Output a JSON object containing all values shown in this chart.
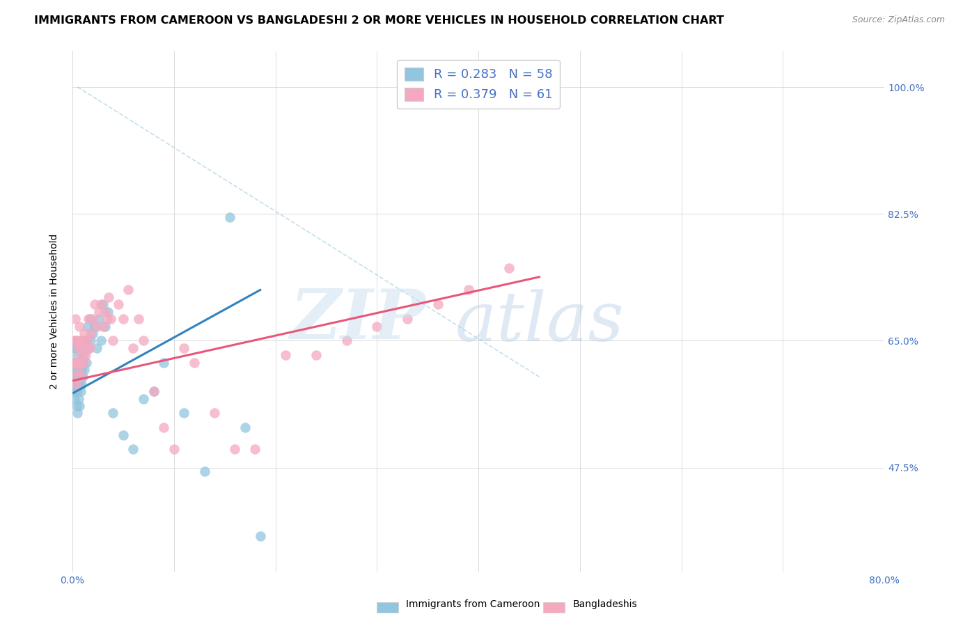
{
  "title": "IMMIGRANTS FROM CAMEROON VS BANGLADESHI 2 OR MORE VEHICLES IN HOUSEHOLD CORRELATION CHART",
  "source": "Source: ZipAtlas.com",
  "ylabel": "2 or more Vehicles in Household",
  "xlim": [
    0.0,
    0.8
  ],
  "ylim": [
    0.33,
    1.05
  ],
  "ytick_labels": [
    "47.5%",
    "65.0%",
    "82.5%",
    "100.0%"
  ],
  "ytick_vals": [
    0.475,
    0.65,
    0.825,
    1.0
  ],
  "xtick_vals": [
    0.0,
    0.1,
    0.2,
    0.3,
    0.4,
    0.5,
    0.6,
    0.7,
    0.8
  ],
  "legend_label1": "Immigrants from Cameroon",
  "legend_label2": "Bangladeshis",
  "R1": "0.283",
  "N1": "58",
  "R2": "0.379",
  "N2": "61",
  "color_blue": "#92c5de",
  "color_pink": "#f4a9bf",
  "color_blue_line": "#3182bd",
  "color_pink_line": "#e8567a",
  "color_dash": "#92c5de",
  "title_fontsize": 11.5,
  "label_fontsize": 10,
  "tick_fontsize": 10,
  "blue_scatter_x": [
    0.001,
    0.001,
    0.001,
    0.002,
    0.002,
    0.002,
    0.002,
    0.003,
    0.003,
    0.003,
    0.003,
    0.004,
    0.004,
    0.004,
    0.004,
    0.005,
    0.005,
    0.005,
    0.005,
    0.006,
    0.006,
    0.006,
    0.007,
    0.007,
    0.007,
    0.008,
    0.008,
    0.009,
    0.009,
    0.01,
    0.01,
    0.011,
    0.012,
    0.013,
    0.014,
    0.015,
    0.016,
    0.017,
    0.018,
    0.02,
    0.022,
    0.024,
    0.026,
    0.028,
    0.03,
    0.032,
    0.035,
    0.04,
    0.05,
    0.06,
    0.07,
    0.08,
    0.09,
    0.11,
    0.13,
    0.155,
    0.17,
    0.185
  ],
  "blue_scatter_y": [
    0.62,
    0.6,
    0.58,
    0.64,
    0.61,
    0.59,
    0.57,
    0.65,
    0.62,
    0.6,
    0.58,
    0.64,
    0.61,
    0.59,
    0.56,
    0.63,
    0.6,
    0.58,
    0.55,
    0.62,
    0.6,
    0.57,
    0.61,
    0.59,
    0.56,
    0.6,
    0.58,
    0.61,
    0.59,
    0.6,
    0.62,
    0.63,
    0.61,
    0.65,
    0.62,
    0.67,
    0.64,
    0.68,
    0.65,
    0.66,
    0.67,
    0.64,
    0.68,
    0.65,
    0.7,
    0.67,
    0.69,
    0.55,
    0.52,
    0.5,
    0.57,
    0.58,
    0.62,
    0.55,
    0.47,
    0.82,
    0.53,
    0.38
  ],
  "pink_scatter_x": [
    0.001,
    0.001,
    0.002,
    0.002,
    0.003,
    0.003,
    0.004,
    0.004,
    0.005,
    0.005,
    0.006,
    0.006,
    0.007,
    0.007,
    0.008,
    0.008,
    0.009,
    0.009,
    0.01,
    0.011,
    0.012,
    0.013,
    0.014,
    0.015,
    0.016,
    0.017,
    0.018,
    0.02,
    0.022,
    0.024,
    0.026,
    0.028,
    0.03,
    0.032,
    0.034,
    0.036,
    0.038,
    0.04,
    0.045,
    0.05,
    0.055,
    0.06,
    0.065,
    0.07,
    0.08,
    0.09,
    0.1,
    0.11,
    0.12,
    0.14,
    0.16,
    0.18,
    0.21,
    0.24,
    0.27,
    0.3,
    0.33,
    0.36,
    0.39,
    0.43,
    0.46
  ],
  "pink_scatter_y": [
    0.62,
    0.6,
    0.65,
    0.62,
    0.68,
    0.65,
    0.62,
    0.59,
    0.65,
    0.62,
    0.64,
    0.61,
    0.67,
    0.64,
    0.65,
    0.62,
    0.63,
    0.6,
    0.65,
    0.62,
    0.66,
    0.63,
    0.64,
    0.65,
    0.68,
    0.64,
    0.66,
    0.68,
    0.7,
    0.67,
    0.69,
    0.7,
    0.67,
    0.69,
    0.68,
    0.71,
    0.68,
    0.65,
    0.7,
    0.68,
    0.72,
    0.64,
    0.68,
    0.65,
    0.58,
    0.53,
    0.5,
    0.64,
    0.62,
    0.55,
    0.5,
    0.5,
    0.63,
    0.63,
    0.65,
    0.67,
    0.68,
    0.7,
    0.72,
    0.75,
    1.0
  ],
  "blue_line_x": [
    0.001,
    0.185
  ],
  "blue_line_y": [
    0.578,
    0.72
  ],
  "pink_line_x": [
    0.001,
    0.46
  ],
  "pink_line_y": [
    0.595,
    0.738
  ],
  "dash_line_x": [
    0.005,
    0.46
  ],
  "dash_line_y": [
    1.0,
    0.6
  ]
}
